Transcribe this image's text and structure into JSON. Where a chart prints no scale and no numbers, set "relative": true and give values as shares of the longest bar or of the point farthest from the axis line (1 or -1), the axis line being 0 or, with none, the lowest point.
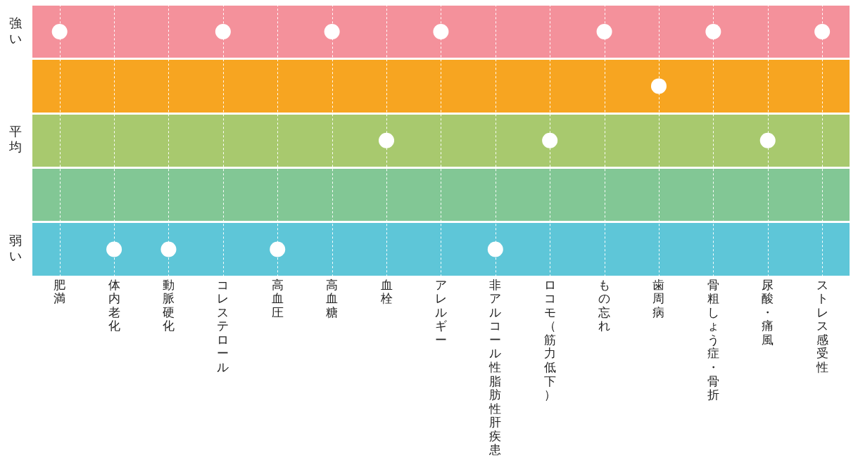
{
  "chart_data": {
    "type": "scatter",
    "relative": true,
    "categories": [
      "肥満",
      "体内老化",
      "動脈硬化",
      "コレステロール",
      "高血圧",
      "高血糖",
      "血栓",
      "アレルギー",
      "非アルコール性脂肪性肝疾患",
      "ロコモ（筋力低下）",
      "もの忘れ",
      "歯周病",
      "骨粗しょう症・骨折",
      "尿酸・痛風",
      "ストレス感受性"
    ],
    "values": [
      1,
      0,
      0,
      1,
      0,
      1,
      0.5,
      1,
      0,
      0.5,
      1,
      0.75,
      1,
      0.5,
      1
    ],
    "color": "#ffffff",
    "marker": "circle",
    "grid": "x",
    "annotations": [
      "強い",
      "平均",
      "弱い"
    ]
  }
}
